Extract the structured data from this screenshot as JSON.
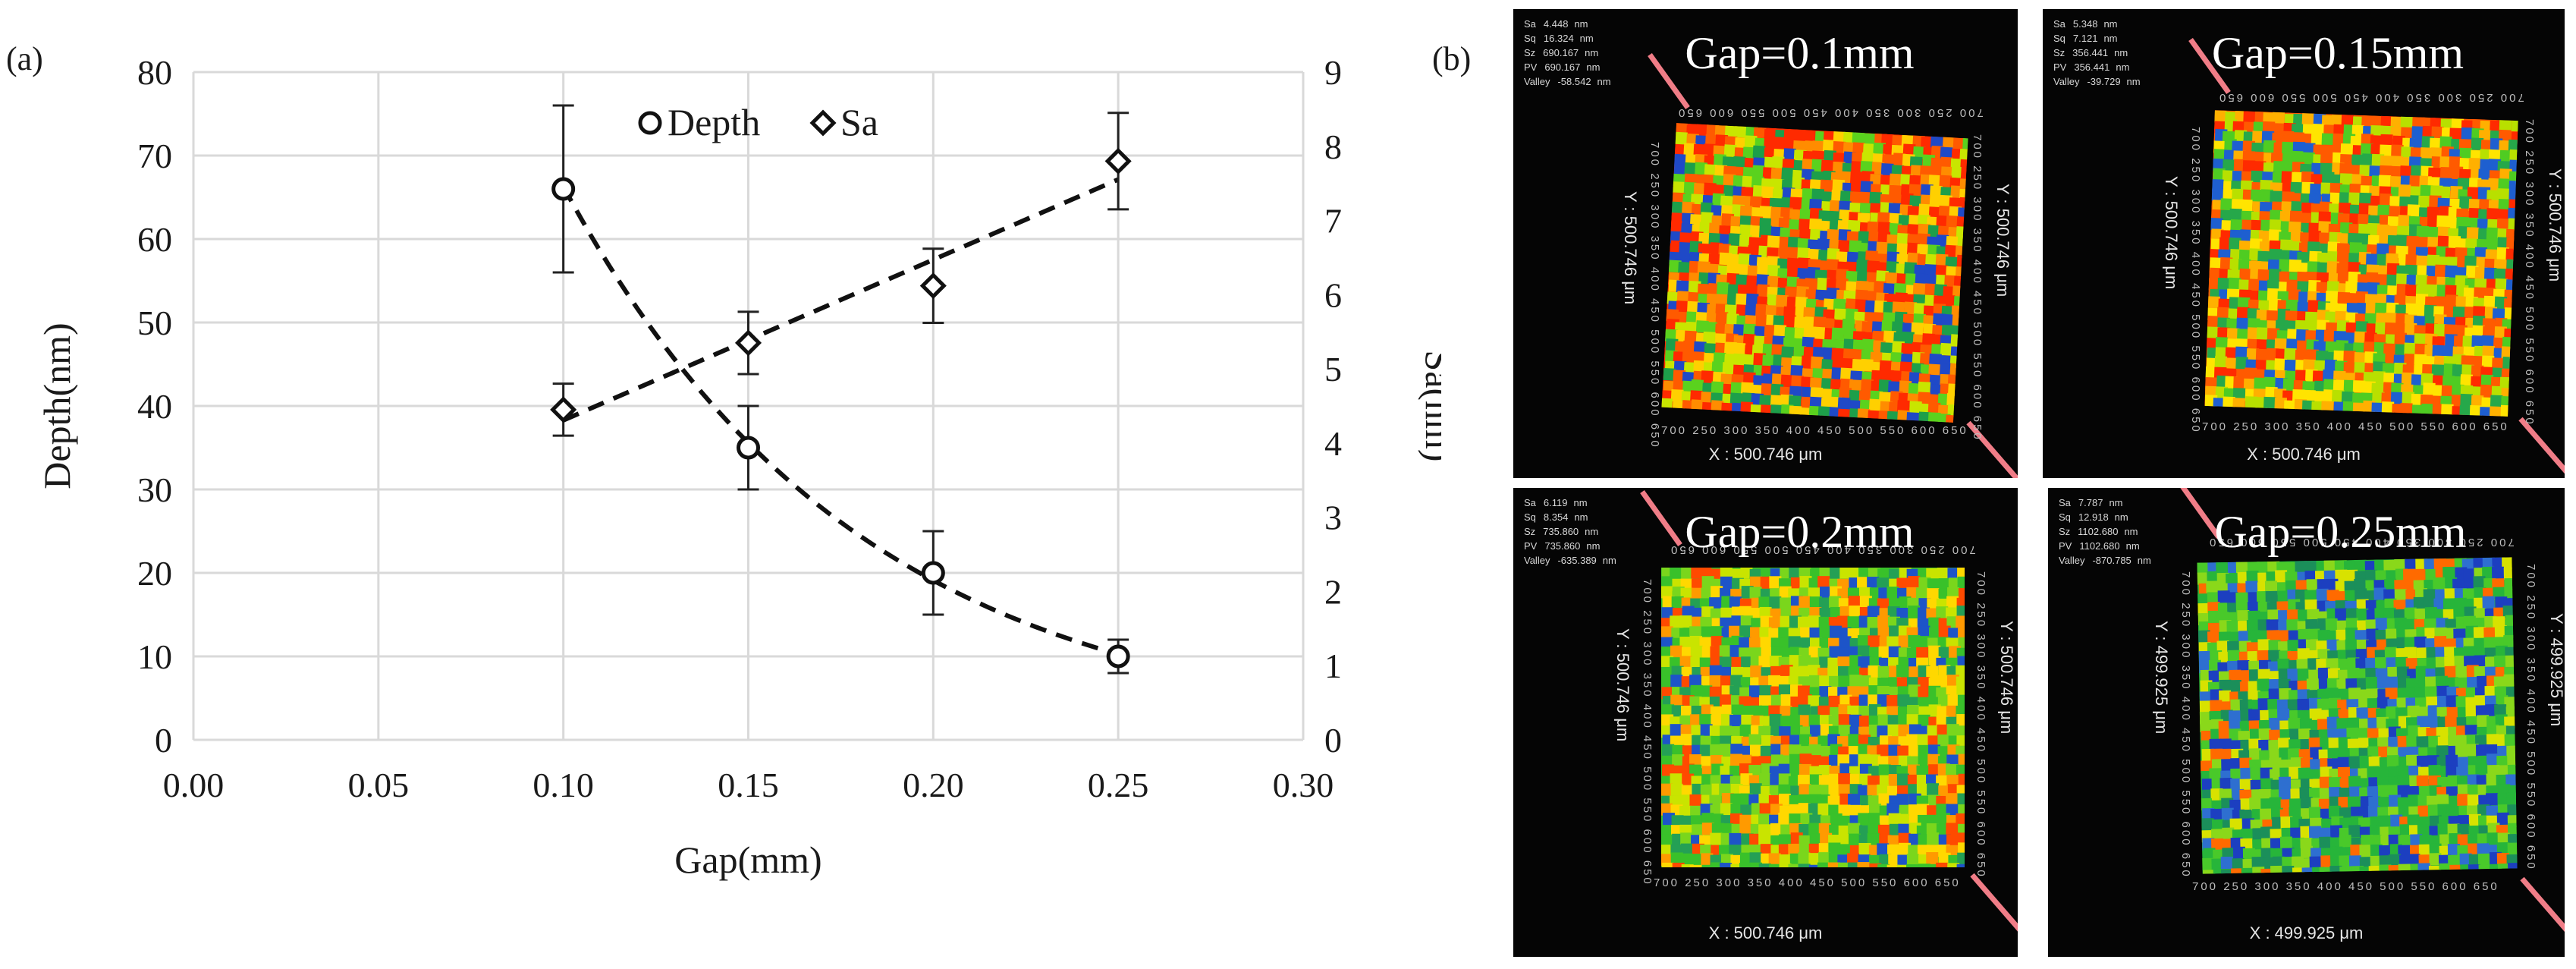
{
  "panel_a_label": "(a)",
  "panel_b_label": "(b)",
  "chart_data": {
    "type": "scatter",
    "title": "",
    "xlabel": "Gap(mm)",
    "ylabel": "Depth(nm)",
    "y2label": "Sa(nm)",
    "xlim": [
      0.0,
      0.3
    ],
    "ylim": [
      0,
      80
    ],
    "y2lim": [
      0,
      9
    ],
    "x_ticks": [
      "0.00",
      "0.05",
      "0.10",
      "0.15",
      "0.20",
      "0.25",
      "0.30"
    ],
    "y_ticks": [
      "0",
      "10",
      "20",
      "30",
      "40",
      "50",
      "60",
      "70",
      "80"
    ],
    "y2_ticks": [
      "0",
      "1",
      "2",
      "3",
      "4",
      "5",
      "6",
      "7",
      "8",
      "9"
    ],
    "grid": true,
    "legend": "top-center",
    "series": [
      {
        "name": "Depth",
        "axis": "left",
        "marker": "circle",
        "x": [
          0.1,
          0.15,
          0.2,
          0.25
        ],
        "y": [
          66,
          35,
          20,
          10
        ],
        "err": [
          10,
          5,
          5,
          2
        ],
        "trend": "exponential"
      },
      {
        "name": "Sa",
        "axis": "right",
        "marker": "diamond",
        "x": [
          0.1,
          0.15,
          0.2,
          0.25
        ],
        "y": [
          4.45,
          5.35,
          6.12,
          7.8
        ],
        "err": [
          0.35,
          0.42,
          0.5,
          0.65
        ],
        "trend": "linear"
      }
    ]
  },
  "micrographs": [
    {
      "title": "Gap=0.1mm",
      "stats": [
        [
          "Sa",
          "4.448",
          "nm"
        ],
        [
          "Sq",
          "16.324",
          "nm"
        ],
        [
          "Sz",
          "690.167",
          "nm"
        ],
        [
          "PV",
          "690.167",
          "nm"
        ],
        [
          "Valley",
          "-58.542",
          "nm"
        ]
      ],
      "x_dim": "X : 500.746 μm",
      "y_dim": "Y : 500.746 μm",
      "ticks": "700 250 300 350 400 450 500 550 600 650",
      "seed": 11,
      "palette": "hot"
    },
    {
      "title": "Gap=0.15mm",
      "stats": [
        [
          "Sa",
          "5.348",
          "nm"
        ],
        [
          "Sq",
          "7.121",
          "nm"
        ],
        [
          "Sz",
          "356.441",
          "nm"
        ],
        [
          "PV",
          "356.441",
          "nm"
        ],
        [
          "Valley",
          "-39.729",
          "nm"
        ]
      ],
      "x_dim": "X : 500.746 μm",
      "y_dim": "Y : 500.746 μm",
      "ticks": "700 250 300 350 400 450 500 550 600 650",
      "seed": 23,
      "palette": "mixed"
    },
    {
      "title": "Gap=0.2mm",
      "stats": [
        [
          "Sa",
          "6.119",
          "nm"
        ],
        [
          "Sq",
          "8.354",
          "nm"
        ],
        [
          "Sz",
          "735.860",
          "nm"
        ],
        [
          "PV",
          "735.860",
          "nm"
        ],
        [
          "Valley",
          "-635.389",
          "nm"
        ]
      ],
      "x_dim": "X : 500.746 μm",
      "y_dim": "Y : 500.746 μm",
      "ticks": "700 250 300 350 400 450 500 550 600 650",
      "seed": 37,
      "palette": "warm-green"
    },
    {
      "title": "Gap=0.25mm",
      "stats": [
        [
          "Sa",
          "7.787",
          "nm"
        ],
        [
          "Sq",
          "12.918",
          "nm"
        ],
        [
          "Sz",
          "1102.680",
          "nm"
        ],
        [
          "PV",
          "1102.680",
          "nm"
        ],
        [
          "Valley",
          "-870.785",
          "nm"
        ]
      ],
      "x_dim": "X : 499.925 μm",
      "y_dim": "Y : 499.925 μm",
      "ticks": "700 250 300 350 400 450 500 550 600 650",
      "seed": 53,
      "palette": "cool"
    }
  ]
}
